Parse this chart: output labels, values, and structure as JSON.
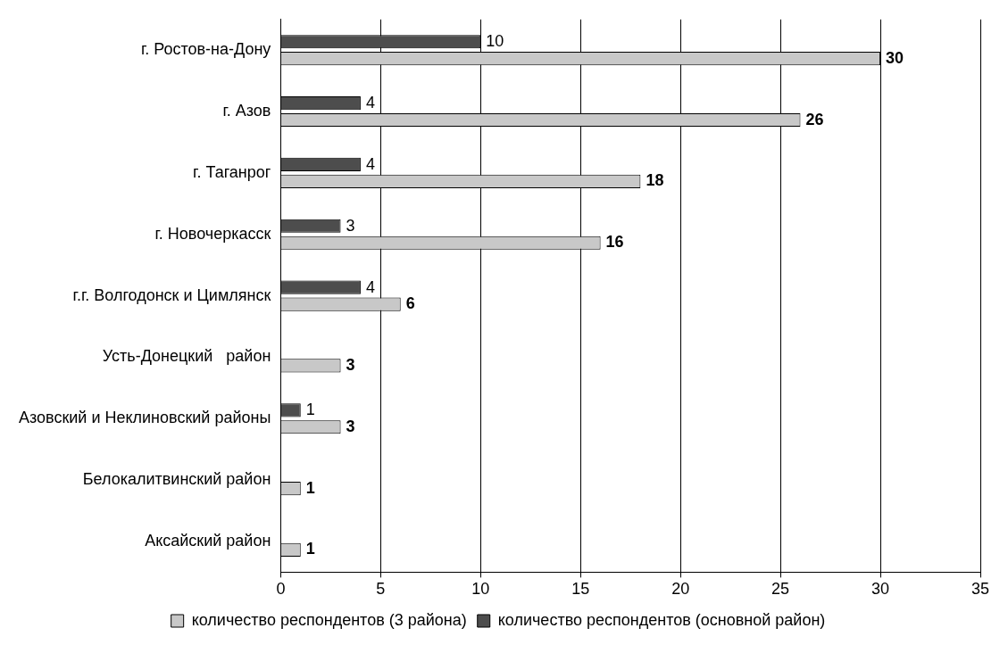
{
  "chart_data": {
    "type": "bar",
    "orientation": "horizontal",
    "categories": [
      "г. Ростов-на-Дону",
      "г. Азов",
      "г. Таганрог",
      "г. Новочеркасск",
      "г.г. Волгодонск и Цимлянск",
      "Усть-Донецкий   район",
      "Азовский и Неклиновский районы",
      "Белокалитвинский район",
      "Аксайский район"
    ],
    "series": [
      {
        "name": "количество респондентов (3 района)",
        "color": "#c8c8c8",
        "values": [
          30,
          26,
          18,
          16,
          6,
          3,
          3,
          1,
          1
        ]
      },
      {
        "name": "количество респондентов (основной район)",
        "color": "#4d4d4d",
        "values": [
          10,
          4,
          4,
          3,
          4,
          null,
          1,
          null,
          null
        ]
      }
    ],
    "xlim": [
      0,
      35
    ],
    "xticks": [
      0,
      5,
      10,
      15,
      20,
      25,
      30,
      35
    ],
    "grid": "x",
    "legend": "bottom",
    "data_labels": true
  }
}
